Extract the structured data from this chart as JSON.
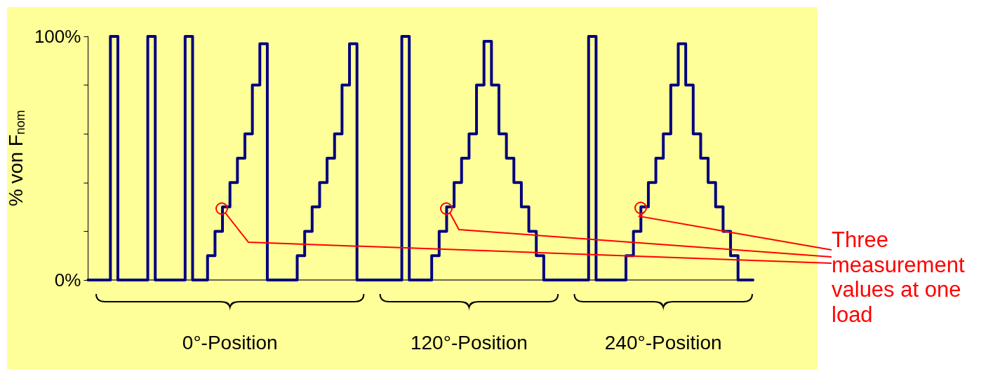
{
  "chart_data": {
    "type": "step",
    "ylabel": "% von F$_{nom}$",
    "categories": [
      null,
      null,
      null,
      null,
      null,
      null,
      null,
      null,
      null,
      null,
      null,
      null,
      null,
      null,
      null,
      null,
      null,
      null,
      null,
      null,
      null,
      null,
      null,
      null,
      null,
      null,
      null,
      null,
      null,
      null,
      null,
      null,
      null,
      null,
      null,
      null,
      null,
      null,
      null,
      null,
      null,
      null,
      null,
      null,
      null,
      null,
      null,
      null,
      null,
      null,
      null,
      null,
      null,
      null,
      null,
      null,
      null,
      null,
      null,
      null,
      null,
      null,
      null,
      null,
      null,
      null,
      null,
      null,
      null,
      null,
      null,
      null,
      null,
      null,
      null,
      null,
      null,
      null,
      null,
      null,
      null,
      null,
      null,
      null,
      null,
      null,
      null,
      null,
      null,
      null
    ],
    "series": [
      {
        "color": "#000080",
        "values": [
          0,
          0,
          0,
          100,
          0,
          0,
          0,
          0,
          100,
          0,
          0,
          0,
          0,
          100,
          0,
          0,
          10,
          20,
          30,
          40,
          50,
          60,
          80,
          97,
          0,
          0,
          0,
          0,
          10,
          20,
          30,
          40,
          50,
          60,
          80,
          97,
          0,
          0,
          0,
          0,
          0,
          0,
          100,
          0,
          0,
          0,
          10,
          20,
          30,
          40,
          50,
          60,
          80,
          98,
          80,
          60,
          50,
          40,
          30,
          20,
          10,
          0,
          0,
          0,
          0,
          0,
          0,
          100,
          0,
          0,
          0,
          0,
          10,
          20,
          30,
          40,
          50,
          60,
          80,
          97,
          80,
          60,
          50,
          40,
          30,
          20,
          10,
          0,
          0,
          0
        ]
      }
    ],
    "ylim": [
      0,
      100
    ],
    "yticks": [
      {
        "value": 0,
        "label": "0%"
      },
      {
        "value": 20,
        "label": null
      },
      {
        "value": 40,
        "label": null
      },
      {
        "value": 60,
        "label": null
      },
      {
        "value": 80,
        "label": null
      },
      {
        "value": 100,
        "label": "100%"
      }
    ],
    "tick_labels": "y",
    "grid": false,
    "marker": "none",
    "line_style": "solid",
    "annotations": [
      "Three measurement values at one load",
      "0°-Position",
      "120°-Position",
      "240°-Position"
    ]
  }
}
